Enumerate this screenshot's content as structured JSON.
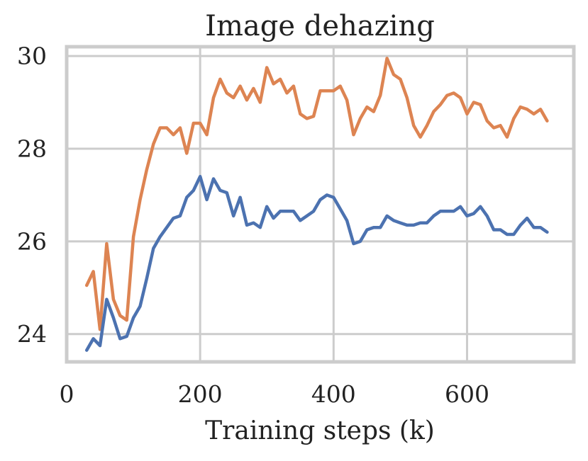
{
  "chart_data": {
    "type": "line",
    "title": "Image dehazing",
    "xlabel": "Training steps (k)",
    "ylabel": "",
    "xlim": [
      0,
      760
    ],
    "ylim": [
      23.4,
      30.2
    ],
    "xticks": [
      0,
      200,
      400,
      600
    ],
    "yticks": [
      24,
      26,
      28,
      30
    ],
    "grid": true,
    "x": [
      30,
      40,
      50,
      60,
      70,
      80,
      90,
      100,
      110,
      120,
      130,
      140,
      150,
      160,
      170,
      180,
      190,
      200,
      210,
      220,
      230,
      240,
      250,
      260,
      270,
      280,
      290,
      300,
      310,
      320,
      330,
      340,
      350,
      360,
      370,
      380,
      390,
      400,
      410,
      420,
      430,
      440,
      450,
      460,
      470,
      480,
      490,
      500,
      510,
      520,
      530,
      540,
      550,
      560,
      570,
      580,
      590,
      600,
      610,
      620,
      630,
      640,
      650,
      660,
      670,
      680,
      690,
      700,
      710,
      720
    ],
    "series": [
      {
        "color": "#dd8452",
        "values": [
          25.05,
          25.35,
          24.1,
          25.95,
          24.75,
          24.4,
          24.3,
          26.1,
          26.9,
          27.55,
          28.1,
          28.45,
          28.45,
          28.3,
          28.45,
          27.9,
          28.55,
          28.55,
          28.3,
          29.1,
          29.5,
          29.2,
          29.1,
          29.35,
          29.05,
          29.3,
          29.0,
          29.75,
          29.4,
          29.5,
          29.2,
          29.35,
          28.75,
          28.65,
          28.7,
          29.25,
          29.25,
          29.25,
          29.35,
          29.05,
          28.3,
          28.65,
          28.9,
          28.8,
          29.15,
          29.95,
          29.6,
          29.5,
          29.1,
          28.5,
          28.25,
          28.5,
          28.8,
          28.95,
          29.15,
          29.2,
          29.1,
          28.75,
          29.0,
          28.95,
          28.6,
          28.45,
          28.5,
          28.25,
          28.65,
          28.9,
          28.85,
          28.75,
          28.85,
          28.6
        ]
      },
      {
        "color": "#4c72b0",
        "values": [
          23.65,
          23.9,
          23.75,
          24.75,
          24.35,
          23.9,
          23.95,
          24.35,
          24.6,
          25.2,
          25.85,
          26.1,
          26.3,
          26.5,
          26.55,
          26.95,
          27.1,
          27.4,
          26.9,
          27.35,
          27.1,
          27.05,
          26.55,
          26.95,
          26.35,
          26.4,
          26.3,
          26.75,
          26.5,
          26.65,
          26.65,
          26.65,
          26.45,
          26.55,
          26.65,
          26.9,
          27.0,
          26.95,
          26.7,
          26.45,
          25.95,
          26.0,
          26.25,
          26.3,
          26.3,
          26.55,
          26.45,
          26.4,
          26.35,
          26.35,
          26.4,
          26.4,
          26.55,
          26.65,
          26.65,
          26.65,
          26.75,
          26.55,
          26.6,
          26.75,
          26.55,
          26.25,
          26.25,
          26.15,
          26.15,
          26.35,
          26.5,
          26.3,
          26.3,
          26.2
        ]
      }
    ]
  }
}
